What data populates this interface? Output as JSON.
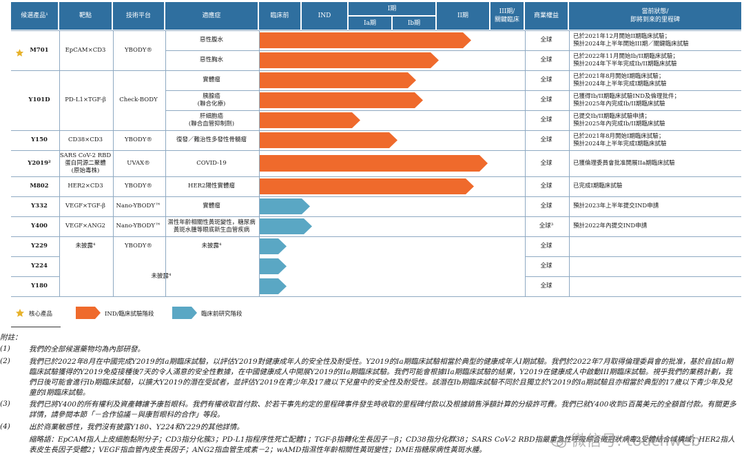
{
  "header": {
    "candidate": "候選產品¹",
    "target": "靶點",
    "platform": "技術平台",
    "indication": "適應症",
    "preclinical": "臨床前",
    "ind": "IND",
    "phase1": "I期",
    "phase1a": "Ia期",
    "phase1b": "Ib期",
    "phase2": "II期",
    "phase3": "III期/\n關鍵臨床",
    "rights": "商業權益",
    "status": "當前狀態/\n即將到來的里程碑"
  },
  "rows": [
    {
      "candidate": "M701",
      "target": "EpCAM×CD3",
      "platform": "YBODY®",
      "indication": "惡性腹水",
      "rights": "全球",
      "status": "已於2021年12月開始II期臨床試驗；\n預計2024年上半年開始III期／關鍵臨床試驗",
      "stage": 0.92,
      "type": "ind"
    },
    {
      "candidate": "",
      "target": "",
      "platform": "",
      "indication": "惡性胸水",
      "rights": "全球",
      "status": "已於2022年11月開始Ib/II期臨床試驗；\n預計2024年下半年完成Ib/II期臨床試驗",
      "stage": 0.78,
      "type": "ind"
    },
    {
      "candidate": "Y101D",
      "target": "PD-L1×TGF-β",
      "platform": "Check-BODY",
      "indication": "實體瘤",
      "rights": "全球",
      "status": "已於2021年8月開始I期臨床試驗；\n預計2024年上半年完成I期臨床試驗",
      "stage": 0.68,
      "type": "ind"
    },
    {
      "candidate": "",
      "target": "",
      "platform": "",
      "indication": "胰腺癌\n(聯合化療)",
      "rights": "全球",
      "status": "已獲得Ib/II期臨床試驗IND及倫理批件；\n預計2025年內完成Ib/II期臨床試驗",
      "stage": 0.71,
      "type": "ind"
    },
    {
      "candidate": "",
      "target": "",
      "platform": "",
      "indication": "肝細胞癌\n(聯合血管抑制劑)",
      "rights": "全球",
      "status": "已提交Ib/II期臨床試驗申請；\n預計2025年內完成Ib/II期臨床試驗",
      "stage": 0.44,
      "type": "ind"
    },
    {
      "candidate": "Y150",
      "target": "CD38×CD3",
      "platform": "YBODY®",
      "indication": "復發／難治性多發性骨髓瘤",
      "rights": "全球",
      "status": "已於2021年8月開始I期臨床試驗；\n預計2024年上半年完成I期臨床試驗",
      "stage": 0.6,
      "type": "ind"
    },
    {
      "candidate": "Y2019²",
      "target": "SARS CoV-2 RBD\n蛋白同源二聚體\n(原始毒株)",
      "platform": "UVAX®",
      "indication": "COVID-19",
      "rights": "全球",
      "status": "已獲倫理委員會批准開展IIa期臨床試驗",
      "stage": 0.99,
      "type": "ind"
    },
    {
      "candidate": "M802",
      "target": "HER2×CD3",
      "platform": "YBODY®",
      "indication": "HER2陽性實體瘤",
      "rights": "全球",
      "status": "已完成I期臨床試驗",
      "stage": 0.93,
      "type": "ind"
    },
    {
      "candidate": "Y332",
      "target": "VEGF×TGF-β",
      "platform": "Nano-YBODY™",
      "indication": "實體瘤",
      "rights": "全球",
      "status": "預計2023年上半年提交IND申請",
      "stage": 0.22,
      "type": "pre"
    },
    {
      "candidate": "Y400",
      "target": "VEGF×ANG2",
      "platform": "Nano-YBODY™",
      "indication": "濕性年齡相關性黃斑變性，糖尿病\n黃斑水腫等眼底新生血管疾病",
      "rights": "全球³",
      "status": "預計2022年內提交IND申請",
      "stage": 0.23,
      "type": "pre"
    },
    {
      "candidate": "Y229",
      "target": "未披露⁴",
      "platform": "YBODY®",
      "indication": "未披露⁴",
      "rights": "全球",
      "status": "",
      "stage": 0.12,
      "type": "pre"
    },
    {
      "candidate": "Y224",
      "target": "",
      "platform": "",
      "indication": "",
      "rights": "全球",
      "status": "",
      "stage": 0.12,
      "type": "pre"
    },
    {
      "candidate": "Y180",
      "target": "",
      "platform": "",
      "indication": "",
      "rights": "全球",
      "status": "",
      "stage": 0.12,
      "type": "pre"
    }
  ],
  "merged_undisclosed": "未披露⁴",
  "legend": {
    "core": "核心產品",
    "ind_stage": "IND/臨床試驗階段",
    "pre_stage": "臨床前研究階段"
  },
  "colors": {
    "header": "#2f6f9f",
    "ind": "#ef6a2c",
    "pre": "#5aa7c4",
    "star": "#e7b22b"
  },
  "notes": {
    "title": "附註：",
    "items": [
      {
        "num": "(1)",
        "text": "我們的全部候選藥物均為內部研發。"
      },
      {
        "num": "(2)",
        "text": "我們已於2022年8月在中國完成Y2019的Ia期臨床試驗，以評估Y2019對健康成年人的安全性及耐受性。Y2019的Ia期臨床試驗相當於典型的健康成年人I期試驗。我們於2022年7月取得倫理委員會的批准，基於自該Ia期臨床試驗獲得的Y2019免疫接種後7天的令人滿意的安全性數據，在中國健康成人中開展Y2019的IIa期臨床試驗。我們可能會根據IIa期臨床試驗的結果，Y2019在健康成人中啟動III期臨床試驗。視乎我們的業務計劃，我們日後可能會進行Ib期臨床試驗，以擴大Y2019的潛在受試者，並評估Y2019在青少年及17歲以下兒童中的安全性及耐受性。該潛在Ib期臨床試驗不同於且獨立於Y2019的Ia期試驗且亦相當於典型的17歲以下青少年及兒童的I期臨床試驗。"
      },
      {
        "num": "(3)",
        "text": "我們已將Y400的所有權利及資產轉讓予康哲眼科。我們有權收取首付款、於若干事先約定的里程碑事件發生時收取的里程碑付款以及根據銷售淨額計算的分級許可費。我們已就Y400收到5百萬美元的全額首付款。有關更多詳情，請參閱本節「－合作協議－與康哲眼科的合作」等段。"
      },
      {
        "num": "(4)",
        "text": "出於商業敏感性，我們沒有披露Y180、Y224和Y229的其他詳情。"
      }
    ],
    "abbr": "縮略語：EpCAM指人上皮細胞黏附分子；CD3指分化簇3；PD-L1指程序性死亡配體1；TGF-β指轉化生長因子－β；CD38指分化群38；SARS CoV-2 RBD指嚴重急性呼吸綜合徵冠狀病毒2受體結合域構域；HER2指人表皮生長因子受體2；VEGF指血管內皮生長因子；ANG2指血管生成素－2；wAMD指濕性年齡相關性黃斑變性；DME指糖尿病性黃斑水腫。"
  },
  "watermark": "微信号: touchweb"
}
